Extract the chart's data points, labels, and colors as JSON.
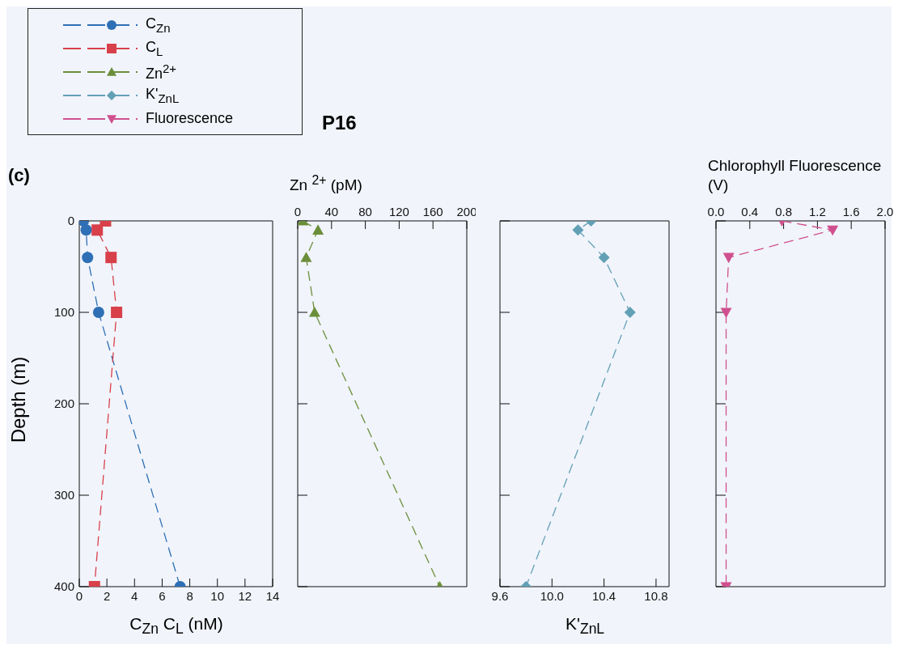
{
  "chart_data": [
    {
      "type": "line",
      "annotations": [
        "(c)"
      ],
      "xlabel": "C$_{Zn}$ C$_{L}$ (nM)",
      "ylabel": "Depth (m)",
      "xlim": [
        0,
        14
      ],
      "xticks": [
        0,
        2,
        4,
        6,
        8,
        10,
        12,
        14
      ],
      "ylim": [
        400,
        0
      ],
      "yticks": [
        0,
        100,
        200,
        300,
        400
      ],
      "legend": "top",
      "line_style": "dashed",
      "series": [
        {
          "name": "C$_{Zn}$",
          "color": "#2e6fb5",
          "marker": "circle",
          "x": [
            0.3,
            0.5,
            0.6,
            1.4,
            7.3
          ],
          "values": [
            0,
            10,
            40,
            100,
            400
          ]
        },
        {
          "name": "C$_{L}$",
          "color": "#d8404a",
          "marker": "square",
          "x": [
            1.9,
            1.3,
            2.3,
            2.7,
            1.1
          ],
          "values": [
            0,
            10,
            40,
            100,
            400
          ]
        }
      ]
    },
    {
      "type": "line",
      "title": "P16",
      "xlabel": "Zn $^{2+}$ (pM)",
      "xlim": [
        0,
        200
      ],
      "xticks": [
        0,
        40,
        80,
        120,
        160,
        200
      ],
      "ylim": [
        400,
        0
      ],
      "yticks": [
        0,
        100,
        200,
        300,
        400
      ],
      "tick_labels": "x",
      "legend": "top left",
      "line_style": "dashed",
      "series": [
        {
          "name": "Zn$^{2+}$",
          "color": "#6b8e3a",
          "marker": "triangle",
          "x": [
            6,
            24,
            10,
            20,
            168
          ],
          "values": [
            0,
            10,
            40,
            100,
            400
          ]
        }
      ]
    },
    {
      "type": "line",
      "xlabel": "K'$_{ZnL}$",
      "xlim": [
        9.6,
        10.9
      ],
      "xticks": [
        9.6,
        {
          "value": 10,
          "label": "10.0"
        },
        10.4,
        10.8
      ],
      "ylim": [
        400,
        0
      ],
      "yticks": [
        0,
        100,
        200,
        300,
        400
      ],
      "tick_labels": "x",
      "legend": "top left",
      "line_style": "dashed",
      "series": [
        {
          "name": "K'$_{ZnL}$",
          "color": "#62a0b5",
          "marker": "diamond",
          "x": [
            10.3,
            10.2,
            10.4,
            10.6,
            9.8
          ],
          "values": [
            0,
            10,
            40,
            100,
            400
          ]
        }
      ]
    },
    {
      "type": "line",
      "xlabel": "Chlorophyll Fluorescence (V)",
      "xlim": [
        0,
        2
      ],
      "xticks": [
        {
          "value": 0,
          "label": "0.0"
        },
        0.4,
        0.8,
        1.2,
        1.6,
        {
          "value": 2,
          "label": "2.0"
        }
      ],
      "ylim": [
        400,
        0
      ],
      "yticks": [
        0,
        100,
        200,
        300,
        400
      ],
      "tick_labels": "x",
      "legend": "top left",
      "line_style": "dashed",
      "series": [
        {
          "name": "Fluorescence",
          "color": "#d0508f",
          "marker": "triangle-down",
          "x": [
            0.78,
            1.38,
            0.15,
            0.12,
            0.12
          ],
          "values": [
            0,
            10,
            40,
            100,
            400
          ]
        }
      ]
    }
  ]
}
